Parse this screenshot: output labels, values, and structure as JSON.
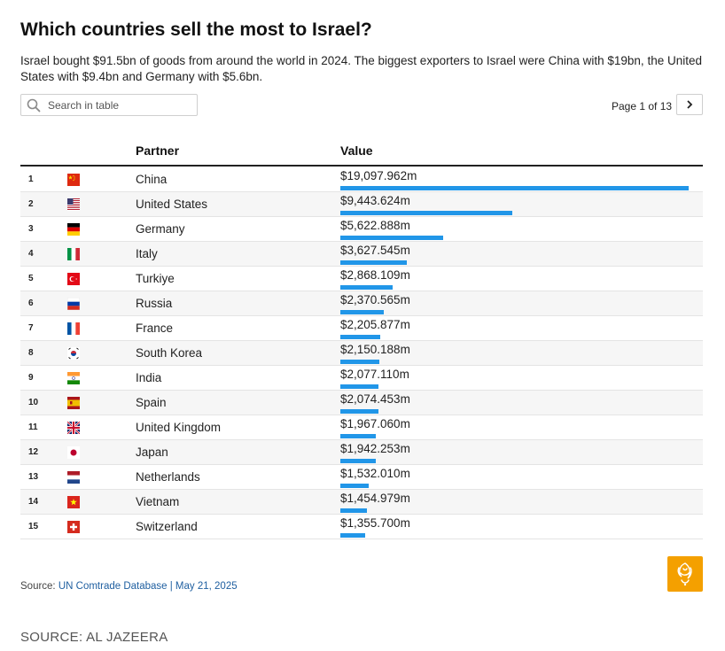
{
  "title": "Which countries sell the most to Israel?",
  "subtitle": "Israel bought $91.5bn of goods from around the world in 2024. The biggest exporters to Israel were China with $19bn, the United States with $9.4bn and Germany with $5.6bn.",
  "search": {
    "placeholder": "Search in table",
    "icon": "search-icon"
  },
  "pager": {
    "text": "Page 1 of 13",
    "next_icon": "chevron-right-icon"
  },
  "table": {
    "col_partner": "Partner",
    "col_value": "Value"
  },
  "chart_data": {
    "type": "table",
    "bar_color": "#2196e8",
    "bar_max": 19097.962,
    "columns": [
      "Partner",
      "Value"
    ],
    "rows": [
      {
        "rank": "1",
        "flag": "china",
        "partner": "China",
        "value": 19097.962,
        "value_label": "$19,097.962m"
      },
      {
        "rank": "2",
        "flag": "united-states",
        "partner": "United States",
        "value": 9443.624,
        "value_label": "$9,443.624m"
      },
      {
        "rank": "3",
        "flag": "germany",
        "partner": "Germany",
        "value": 5622.888,
        "value_label": "$5,622.888m"
      },
      {
        "rank": "4",
        "flag": "italy",
        "partner": "Italy",
        "value": 3627.545,
        "value_label": "$3,627.545m"
      },
      {
        "rank": "5",
        "flag": "turkiye",
        "partner": "Turkiye",
        "value": 2868.109,
        "value_label": "$2,868.109m"
      },
      {
        "rank": "6",
        "flag": "russia",
        "partner": "Russia",
        "value": 2370.565,
        "value_label": "$2,370.565m"
      },
      {
        "rank": "7",
        "flag": "france",
        "partner": "France",
        "value": 2205.877,
        "value_label": "$2,205.877m"
      },
      {
        "rank": "8",
        "flag": "south-korea",
        "partner": "South Korea",
        "value": 2150.188,
        "value_label": "$2,150.188m"
      },
      {
        "rank": "9",
        "flag": "india",
        "partner": "India",
        "value": 2077.11,
        "value_label": "$2,077.110m"
      },
      {
        "rank": "10",
        "flag": "spain",
        "partner": "Spain",
        "value": 2074.453,
        "value_label": "$2,074.453m"
      },
      {
        "rank": "11",
        "flag": "united-kingdom",
        "partner": "United Kingdom",
        "value": 1967.06,
        "value_label": "$1,967.060m"
      },
      {
        "rank": "12",
        "flag": "japan",
        "partner": "Japan",
        "value": 1942.253,
        "value_label": "$1,942.253m"
      },
      {
        "rank": "13",
        "flag": "netherlands",
        "partner": "Netherlands",
        "value": 1532.01,
        "value_label": "$1,532.010m"
      },
      {
        "rank": "14",
        "flag": "vietnam",
        "partner": "Vietnam",
        "value": 1454.979,
        "value_label": "$1,454.979m"
      },
      {
        "rank": "15",
        "flag": "switzerland",
        "partner": "Switzerland",
        "value": 1355.7,
        "value_label": "$1,355.700m"
      }
    ]
  },
  "footer": {
    "source_prefix": "Source: ",
    "source_link": "UN Comtrade Database | May 21, 2025",
    "credit": "SOURCE: AL JAZEERA",
    "logo_icon": "al-jazeera-logo-icon",
    "logo_color": "#f4a000"
  }
}
